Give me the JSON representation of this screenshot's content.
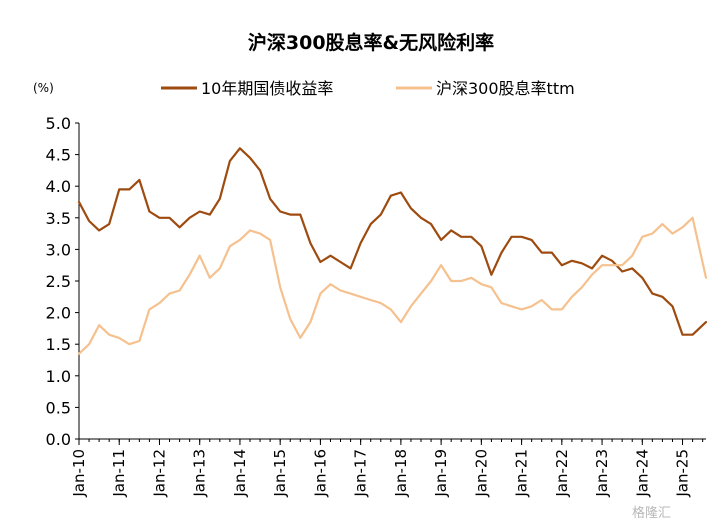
{
  "chart_data": {
    "type": "line",
    "title": "沪深300股息率&无风险利率",
    "ylabel": "(%)",
    "xlabel": "",
    "ylim": [
      0,
      5
    ],
    "yticks": [
      "0.0",
      "0.5",
      "1.0",
      "1.5",
      "2.0",
      "2.5",
      "3.0",
      "3.5",
      "4.0",
      "4.5",
      "5.0"
    ],
    "x_tick_labels": [
      "Jan-10",
      "Jan-11",
      "Jan-12",
      "Jan-13",
      "Jan-14",
      "Jan-15",
      "Jan-16",
      "Jan-17",
      "Jan-18",
      "Jan-19",
      "Jan-20",
      "Jan-21",
      "Jan-22",
      "Jan-23",
      "Jan-24",
      "Jan-25"
    ],
    "x_start": "2010-01",
    "x_end": "2025-08",
    "grid": false,
    "legend_position": "top",
    "series": [
      {
        "name": "10年期国债收益率",
        "color": "#9e4b10",
        "x": [
          "2010-01",
          "2010-04",
          "2010-07",
          "2010-10",
          "2011-01",
          "2011-04",
          "2011-07",
          "2011-10",
          "2012-01",
          "2012-04",
          "2012-07",
          "2012-10",
          "2013-01",
          "2013-04",
          "2013-07",
          "2013-10",
          "2014-01",
          "2014-04",
          "2014-07",
          "2014-10",
          "2015-01",
          "2015-04",
          "2015-07",
          "2015-10",
          "2016-01",
          "2016-04",
          "2016-07",
          "2016-10",
          "2017-01",
          "2017-04",
          "2017-07",
          "2017-10",
          "2018-01",
          "2018-04",
          "2018-07",
          "2018-10",
          "2019-01",
          "2019-04",
          "2019-07",
          "2019-10",
          "2020-01",
          "2020-04",
          "2020-07",
          "2020-10",
          "2021-01",
          "2021-04",
          "2021-07",
          "2021-10",
          "2022-01",
          "2022-04",
          "2022-07",
          "2022-10",
          "2023-01",
          "2023-04",
          "2023-07",
          "2023-10",
          "2024-01",
          "2024-04",
          "2024-07",
          "2024-10",
          "2025-01",
          "2025-04",
          "2025-08"
        ],
        "y": [
          3.75,
          3.45,
          3.3,
          3.4,
          3.95,
          3.95,
          4.1,
          3.6,
          3.5,
          3.5,
          3.35,
          3.5,
          3.6,
          3.55,
          3.8,
          4.4,
          4.6,
          4.45,
          4.25,
          3.8,
          3.6,
          3.55,
          3.55,
          3.1,
          2.8,
          2.9,
          2.8,
          2.7,
          3.1,
          3.4,
          3.55,
          3.85,
          3.9,
          3.65,
          3.5,
          3.4,
          3.15,
          3.3,
          3.2,
          3.2,
          3.05,
          2.6,
          2.95,
          3.2,
          3.2,
          3.15,
          2.95,
          2.95,
          2.75,
          2.82,
          2.78,
          2.7,
          2.9,
          2.82,
          2.65,
          2.7,
          2.55,
          2.3,
          2.25,
          2.1,
          1.65,
          1.65,
          1.85
        ]
      },
      {
        "name": "沪深300股息率ttm",
        "color": "#f5c18e",
        "x": [
          "2010-01",
          "2010-04",
          "2010-07",
          "2010-10",
          "2011-01",
          "2011-04",
          "2011-07",
          "2011-10",
          "2012-01",
          "2012-04",
          "2012-07",
          "2012-10",
          "2013-01",
          "2013-04",
          "2013-07",
          "2013-10",
          "2014-01",
          "2014-04",
          "2014-07",
          "2014-10",
          "2015-01",
          "2015-04",
          "2015-07",
          "2015-10",
          "2016-01",
          "2016-04",
          "2016-07",
          "2016-10",
          "2017-01",
          "2017-04",
          "2017-07",
          "2017-10",
          "2018-01",
          "2018-04",
          "2018-07",
          "2018-10",
          "2019-01",
          "2019-04",
          "2019-07",
          "2019-10",
          "2020-01",
          "2020-04",
          "2020-07",
          "2020-10",
          "2021-01",
          "2021-04",
          "2021-07",
          "2021-10",
          "2022-01",
          "2022-04",
          "2022-07",
          "2022-10",
          "2023-01",
          "2023-04",
          "2023-07",
          "2023-10",
          "2024-01",
          "2024-04",
          "2024-07",
          "2024-10",
          "2025-01",
          "2025-04",
          "2025-08"
        ],
        "y": [
          1.35,
          1.5,
          1.8,
          1.65,
          1.6,
          1.5,
          1.55,
          2.05,
          2.15,
          2.3,
          2.35,
          2.6,
          2.9,
          2.55,
          2.7,
          3.05,
          3.15,
          3.3,
          3.25,
          3.15,
          2.4,
          1.9,
          1.6,
          1.85,
          2.3,
          2.45,
          2.35,
          2.3,
          2.25,
          2.2,
          2.15,
          2.05,
          1.85,
          2.1,
          2.3,
          2.5,
          2.75,
          2.5,
          2.5,
          2.55,
          2.45,
          2.4,
          2.15,
          2.1,
          2.05,
          2.1,
          2.2,
          2.05,
          2.05,
          2.25,
          2.4,
          2.6,
          2.75,
          2.75,
          2.75,
          2.9,
          3.2,
          3.25,
          3.4,
          3.25,
          3.35,
          3.5,
          2.55
        ]
      }
    ]
  },
  "watermark": "格隆汇"
}
